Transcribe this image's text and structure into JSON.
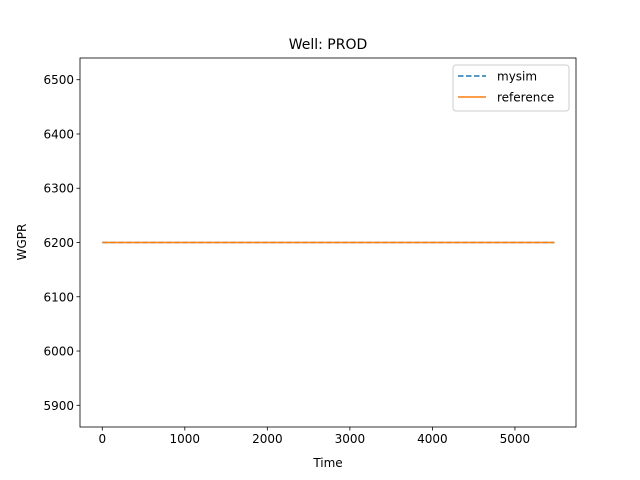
{
  "chart_data": {
    "type": "line",
    "title": "Well: PROD",
    "xlabel": "Time",
    "ylabel": "WGPR",
    "xlim": [
      -270,
      5740
    ],
    "ylim": [
      5860,
      6540
    ],
    "xticks": [
      0,
      1000,
      2000,
      3000,
      4000,
      5000
    ],
    "yticks": [
      5900,
      6000,
      6100,
      6200,
      6300,
      6400,
      6500
    ],
    "grid": false,
    "legend_position": "top-right",
    "series": [
      {
        "name": "mysim",
        "color": "#1f77b4",
        "dash": "dashed",
        "x": [
          0,
          5479
        ],
        "y": [
          6200,
          6200
        ]
      },
      {
        "name": "reference",
        "color": "#ff7f0e",
        "dash": "solid",
        "x": [
          0,
          5479
        ],
        "y": [
          6200,
          6200
        ]
      }
    ]
  }
}
